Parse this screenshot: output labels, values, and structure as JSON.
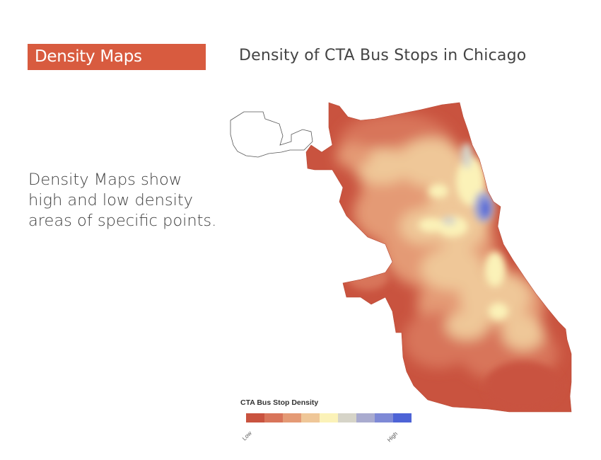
{
  "section_tag": "Density Maps",
  "slide_title": "Density of CTA Bus Stops in Chicago",
  "body_text": "Density Maps show high and low density areas of specific points.",
  "legend": {
    "title": "CTA Bus Stop Density",
    "low_label": "Low",
    "high_label": "High",
    "colors": [
      "#c9533f",
      "#d8745a",
      "#e49a75",
      "#efc798",
      "#fbf2b8",
      "#d6d4c8",
      "#a9abcf",
      "#7e89d6",
      "#4d63d6"
    ]
  },
  "colors": {
    "tag_background": "#d85b3f",
    "title_text": "#444444"
  }
}
